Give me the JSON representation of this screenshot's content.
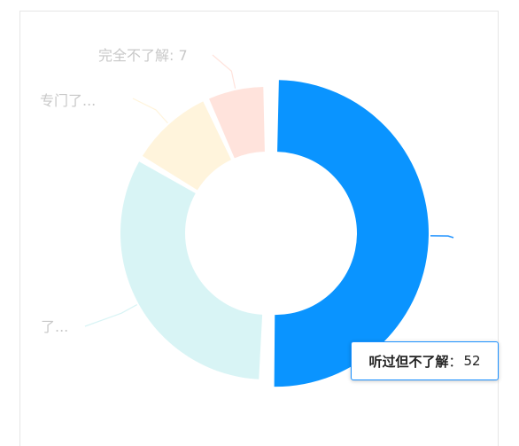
{
  "chart_data": {
    "type": "pie",
    "variant": "donut",
    "title": "",
    "slices": [
      {
        "name": "听过但不了解",
        "value": 52,
        "color": "#0a94ff",
        "label": "听过但不了解：52"
      },
      {
        "name": "了解",
        "value": 34,
        "color": "#d8f4f5",
        "label": "了..."
      },
      {
        "name": "专门了解",
        "value": 10,
        "color": "#fff4dc",
        "label": "专门了..."
      },
      {
        "name": "完全不了解",
        "value": 7,
        "color": "#ffe3dc",
        "label": "完全不了解: 7"
      }
    ],
    "emphasis": {
      "slice": "听过但不了解"
    }
  },
  "tooltip": {
    "name": "听过但不了解",
    "sep": "：",
    "value": "52"
  }
}
